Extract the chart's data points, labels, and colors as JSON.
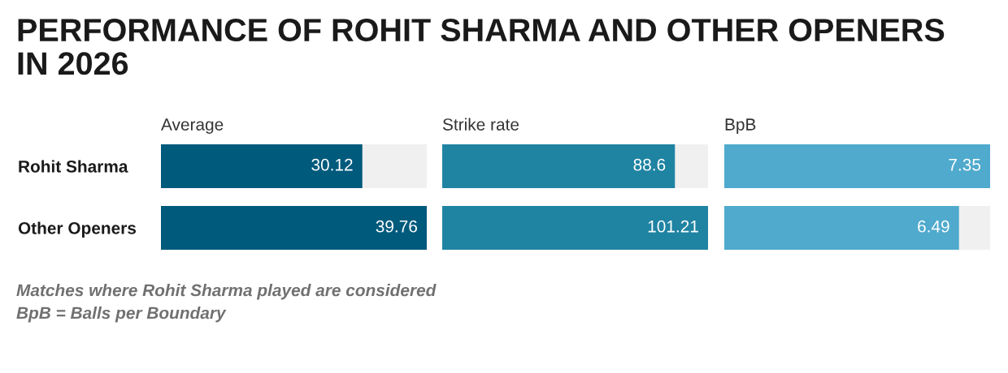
{
  "chart_data": [
    {
      "type": "bar",
      "orientation": "horizontal",
      "title": "PERFORMANCE OF ROHIT SHARMA AND OTHER OPENERS\nIN 2026",
      "subtitle": "Average",
      "categories": [
        "Rohit Sharma",
        "Other Openers"
      ],
      "series": [
        {
          "color": "#005a7c",
          "values": [
            30.12,
            39.76
          ]
        }
      ],
      "data_labels": true,
      "tick_labels": "y",
      "grid": false,
      "legend": false,
      "annotations": [
        "Matches where Rohit Sharma played are considered",
        "BpB = Balls per Boundary"
      ]
    },
    {
      "type": "bar",
      "orientation": "horizontal",
      "subtitle": "Strike rate",
      "series": [
        {
          "color": "#1f83a2",
          "values": [
            88.6,
            101.21
          ]
        }
      ],
      "data_labels": true,
      "tick_labels": false,
      "grid": false,
      "legend": false
    },
    {
      "type": "bar",
      "orientation": "horizontal",
      "subtitle": "BpB",
      "series": [
        {
          "color": "#4faacd",
          "values": [
            7.35,
            6.49
          ]
        }
      ],
      "data_labels": true,
      "tick_labels": false,
      "grid": false,
      "legend": false
    }
  ]
}
